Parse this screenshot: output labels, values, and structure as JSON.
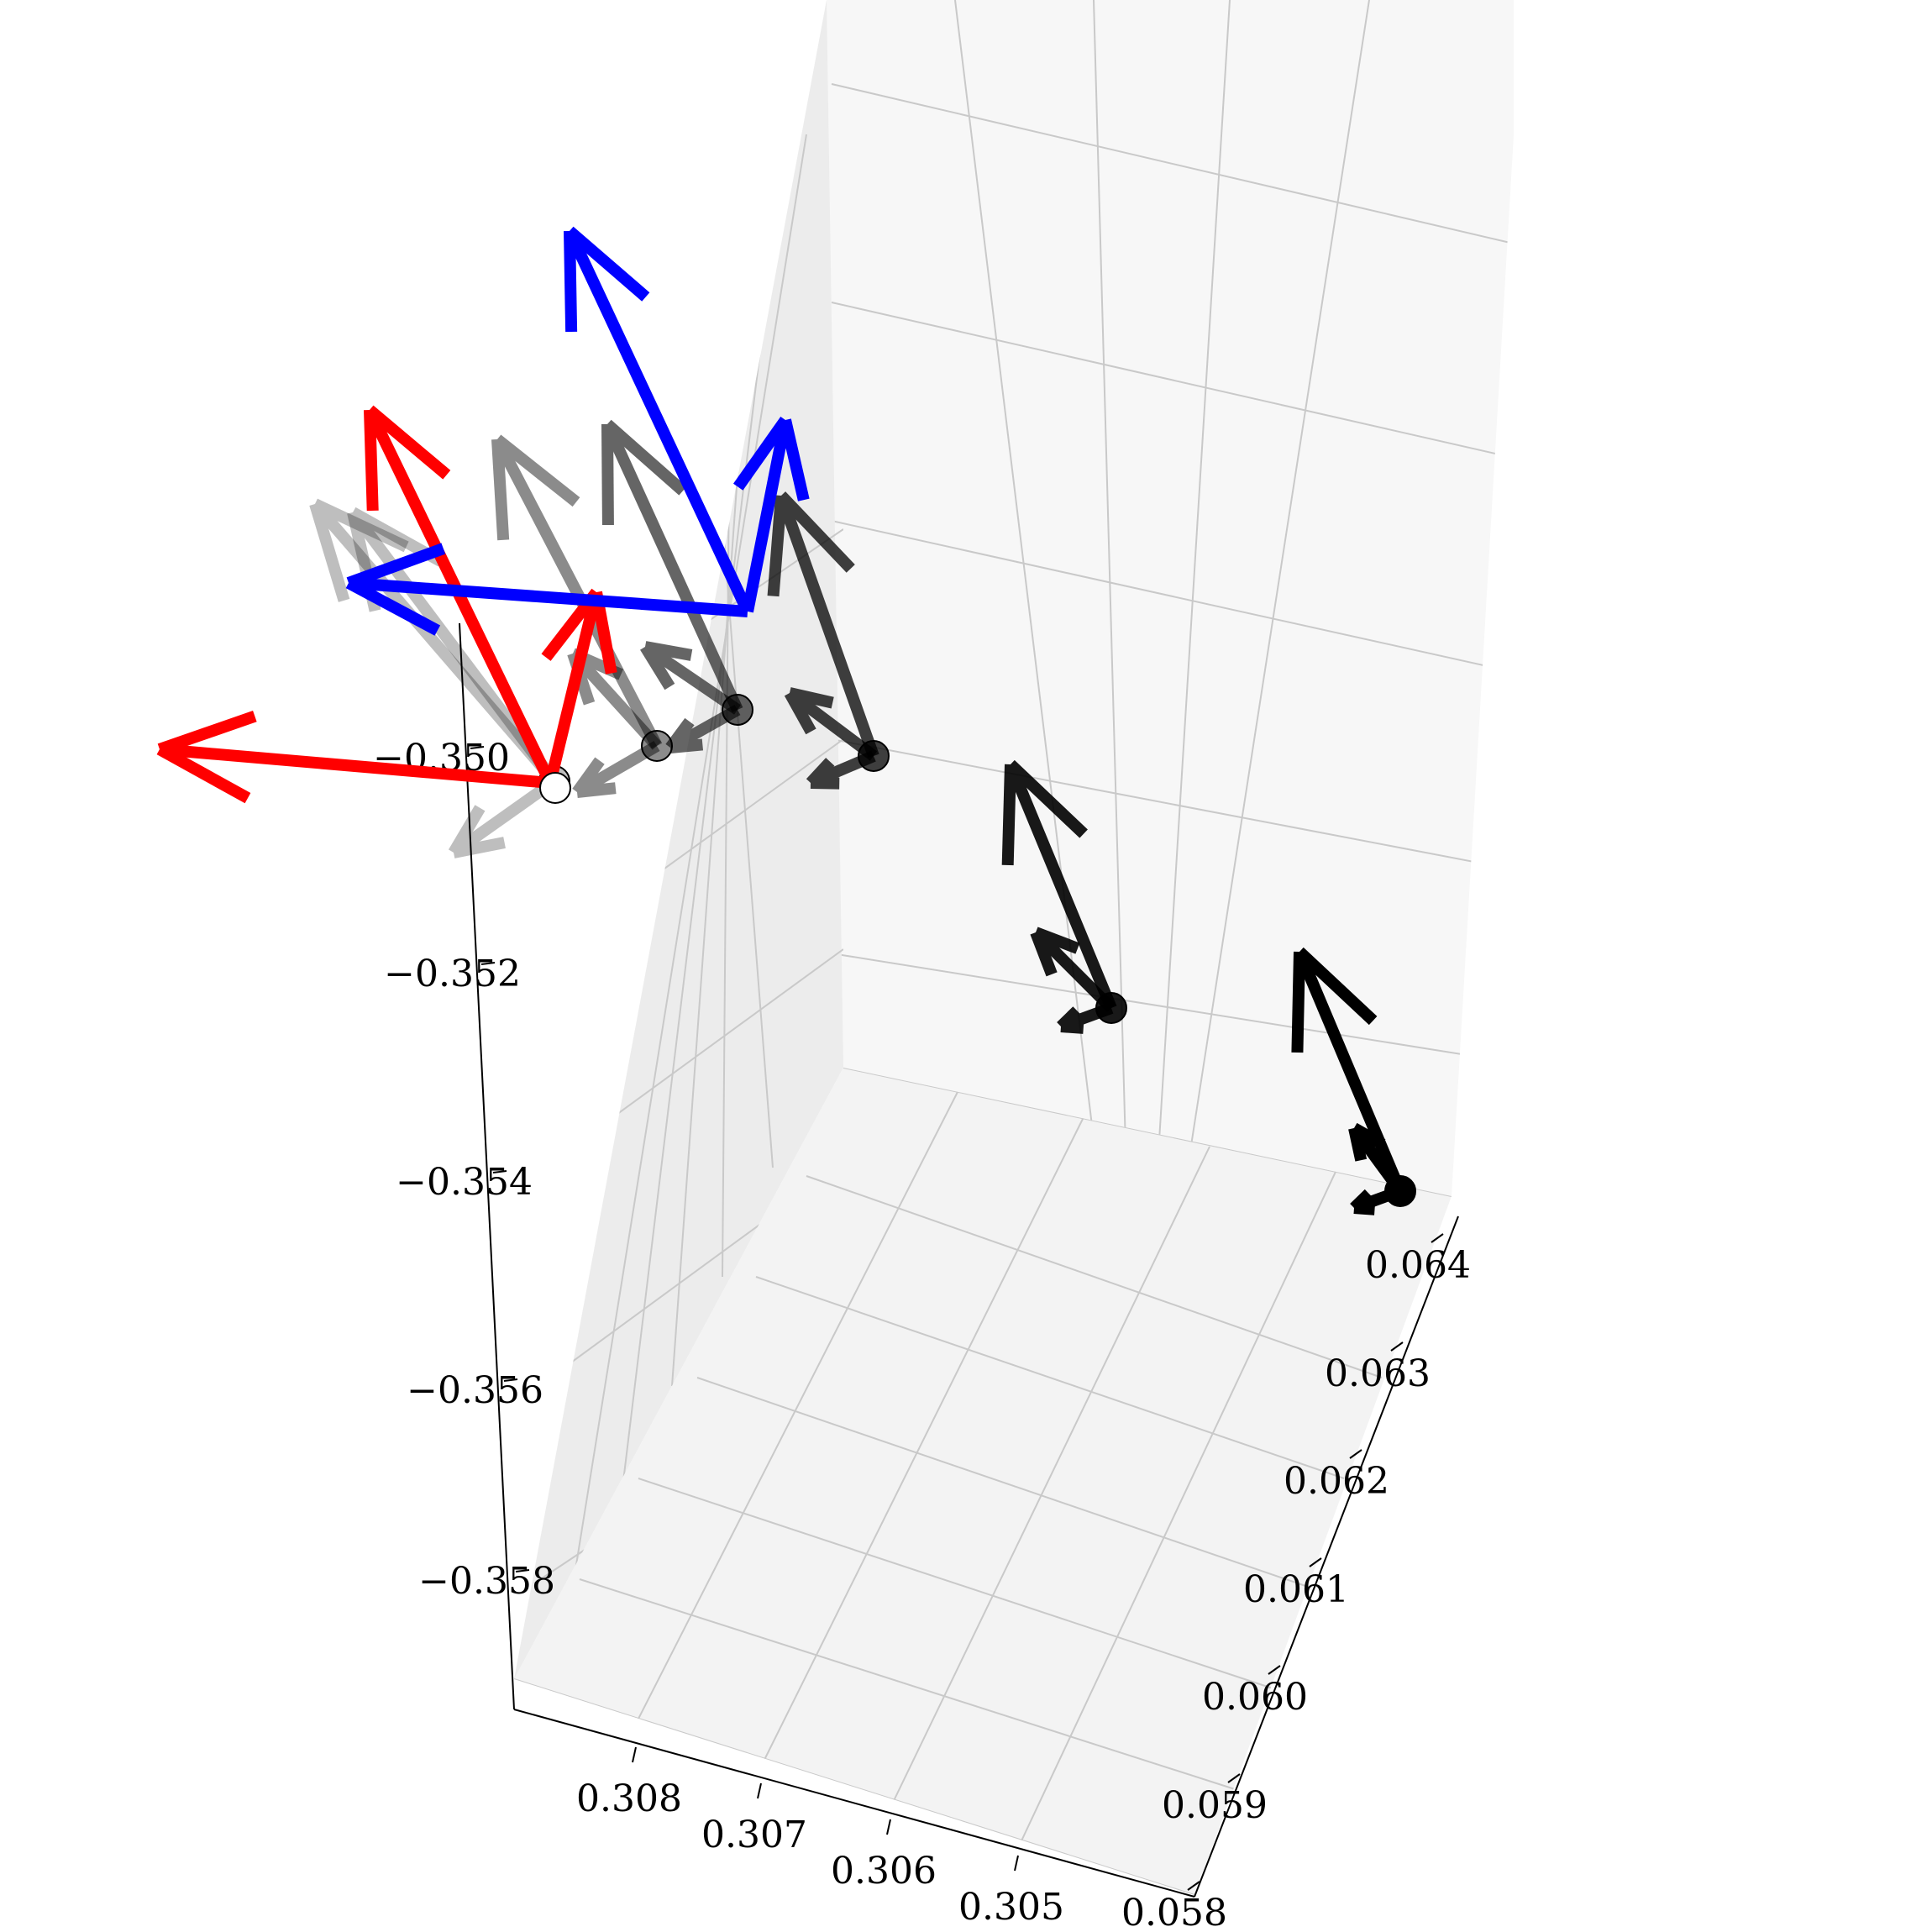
{
  "chart_data": {
    "type": "scatter",
    "projection": "3d",
    "grid": true,
    "title": "",
    "xlabel": "",
    "ylabel": "",
    "zlabel": "",
    "axes": {
      "x": {
        "ticks": [
          0.308,
          0.307,
          0.306,
          0.305
        ],
        "tick_labels": [
          "0.308",
          "0.307",
          "0.306",
          "0.305"
        ],
        "range": [
          0.3049,
          0.3089
        ]
      },
      "y": {
        "ticks": [
          0.058,
          0.059,
          0.06,
          0.061,
          0.062,
          0.063,
          0.064
        ],
        "tick_labels": [
          "0.058",
          "0.059",
          "0.060",
          "0.061",
          "0.062",
          "0.063",
          "0.064"
        ],
        "range": [
          0.0578,
          0.0645
        ]
      },
      "z": {
        "ticks": [
          -0.35,
          -0.352,
          -0.354,
          -0.356,
          -0.358
        ],
        "tick_labels": [
          "−0.350",
          "−0.352",
          "−0.354",
          "−0.356",
          "−0.358"
        ],
        "range": [
          -0.3598,
          -0.3492
        ]
      }
    },
    "colors": {
      "frame_x": "#ff0000",
      "frame_y": "#0000ff",
      "trajectory": "#000000",
      "pane_left": "#ececec",
      "pane_back": "#f7f7f7",
      "pane_floor": "#f3f3f3",
      "grid": "#c9c9c9"
    },
    "poses": [
      {
        "x": 0.3075,
        "y": 0.0638,
        "z": -0.3595,
        "opacity": 1.0
      },
      {
        "x": 0.3078,
        "y": 0.0628,
        "z": -0.3583,
        "opacity": 0.9
      },
      {
        "x": 0.3081,
        "y": 0.0617,
        "z": -0.3576,
        "opacity": 0.75
      },
      {
        "x": 0.3083,
        "y": 0.0609,
        "z": -0.3574,
        "opacity": 0.6
      },
      {
        "x": 0.3084,
        "y": 0.0605,
        "z": -0.3573,
        "opacity": 0.45
      },
      {
        "x": 0.3086,
        "y": 0.0598,
        "z": -0.3571,
        "opacity": 0.25
      }
    ]
  }
}
